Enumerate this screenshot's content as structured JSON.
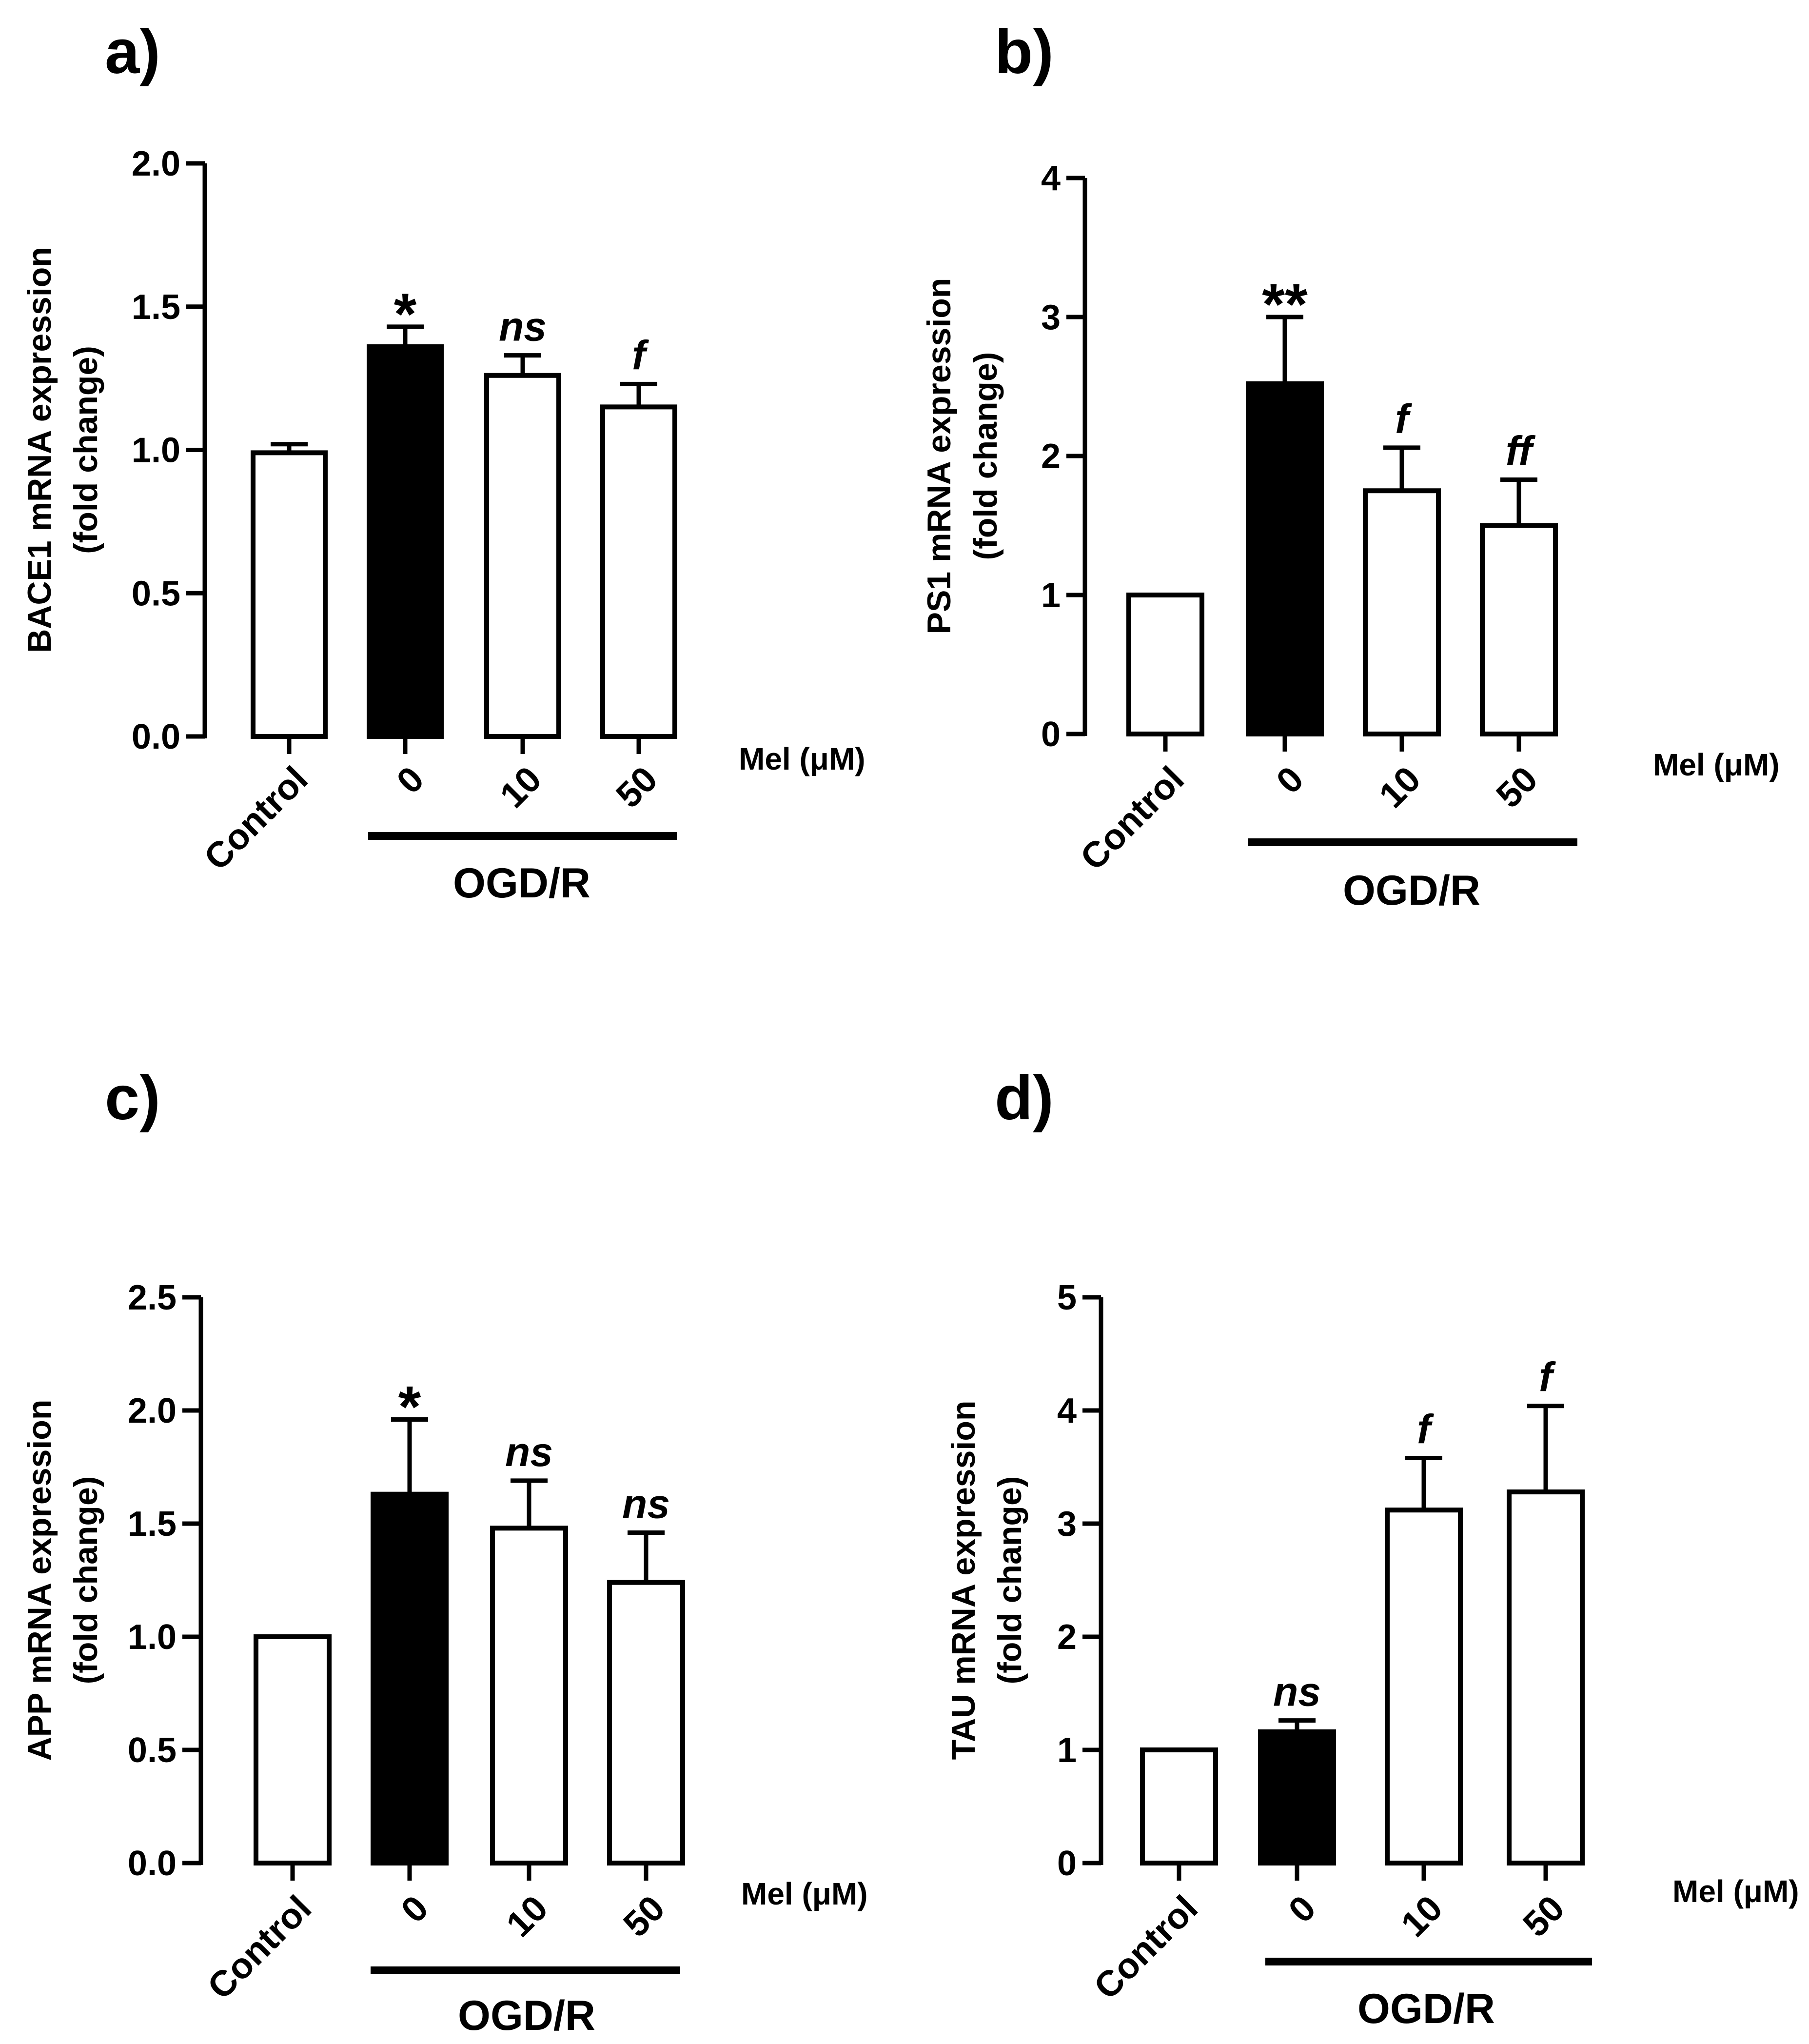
{
  "colors": {
    "filled": "#000000",
    "open": "#ffffff",
    "stroke": "#000000"
  },
  "chart_data": [
    {
      "id": "a",
      "panel_label": "a)",
      "type": "bar",
      "title": "",
      "ylabel": [
        "BACE1 mRNA expression",
        "(fold change)"
      ],
      "xlabel": "Mel (μM)",
      "group_label": "OGD/R",
      "categories": [
        "Control",
        "0",
        "10",
        "50"
      ],
      "values": [
        0.99,
        1.36,
        1.26,
        1.15
      ],
      "errors": [
        0.03,
        0.07,
        0.07,
        0.08
      ],
      "filled": [
        false,
        true,
        false,
        false
      ],
      "significance": [
        "",
        "*",
        "ns",
        "f"
      ],
      "ylim": [
        0,
        2.0
      ],
      "yticks": [
        0.0,
        0.5,
        1.0,
        1.5,
        2.0
      ],
      "ytick_labels": [
        "0.0",
        "0.5",
        "1.0",
        "1.5",
        "2.0"
      ],
      "grid": false,
      "legend": "none"
    },
    {
      "id": "b",
      "panel_label": "b)",
      "type": "bar",
      "title": "",
      "ylabel": [
        "PS1 mRNA expression",
        "(fold change)"
      ],
      "xlabel": "Mel (μM)",
      "group_label": "OGD/R",
      "categories": [
        "Control",
        "0",
        "10",
        "50"
      ],
      "values": [
        1.0,
        2.52,
        1.75,
        1.5
      ],
      "errors": [
        0.0,
        0.48,
        0.31,
        0.33
      ],
      "filled": [
        false,
        true,
        false,
        false
      ],
      "significance": [
        "",
        "**",
        "f",
        "ff"
      ],
      "ylim": [
        0,
        4
      ],
      "yticks": [
        0,
        1,
        2,
        3,
        4
      ],
      "ytick_labels": [
        "0",
        "1",
        "2",
        "3",
        "4"
      ],
      "grid": false,
      "legend": "none"
    },
    {
      "id": "c",
      "panel_label": "c)",
      "type": "bar",
      "title": "",
      "ylabel": [
        "APP mRNA expression",
        "(fold change)"
      ],
      "xlabel": "Mel (μM)",
      "group_label": "OGD/R",
      "categories": [
        "Control",
        "0",
        "10",
        "50"
      ],
      "values": [
        1.0,
        1.63,
        1.48,
        1.24
      ],
      "errors": [
        0.0,
        0.33,
        0.21,
        0.22
      ],
      "filled": [
        false,
        true,
        false,
        false
      ],
      "significance": [
        "",
        "*",
        "ns",
        "ns"
      ],
      "ylim": [
        0,
        2.5
      ],
      "yticks": [
        0.0,
        0.5,
        1.0,
        1.5,
        2.0,
        2.5
      ],
      "ytick_labels": [
        "0.0",
        "0.5",
        "1.0",
        "1.5",
        "2.0",
        "2.5"
      ],
      "grid": false,
      "legend": "none"
    },
    {
      "id": "d",
      "panel_label": "d)",
      "type": "bar",
      "title": "",
      "ylabel": [
        "TAU mRNA expression",
        "(fold change)"
      ],
      "xlabel": "Mel (μM)",
      "group_label": "OGD/R",
      "categories": [
        "Control",
        "0",
        "10",
        "50"
      ],
      "values": [
        1.0,
        1.16,
        3.12,
        3.28
      ],
      "errors": [
        0.0,
        0.1,
        0.46,
        0.76
      ],
      "filled": [
        false,
        true,
        false,
        false
      ],
      "significance": [
        "",
        "ns",
        "f",
        "f"
      ],
      "ylim": [
        0,
        5
      ],
      "yticks": [
        0,
        1,
        2,
        3,
        4,
        5
      ],
      "ytick_labels": [
        "0",
        "1",
        "2",
        "3",
        "4",
        "5"
      ],
      "grid": false,
      "legend": "none"
    }
  ]
}
